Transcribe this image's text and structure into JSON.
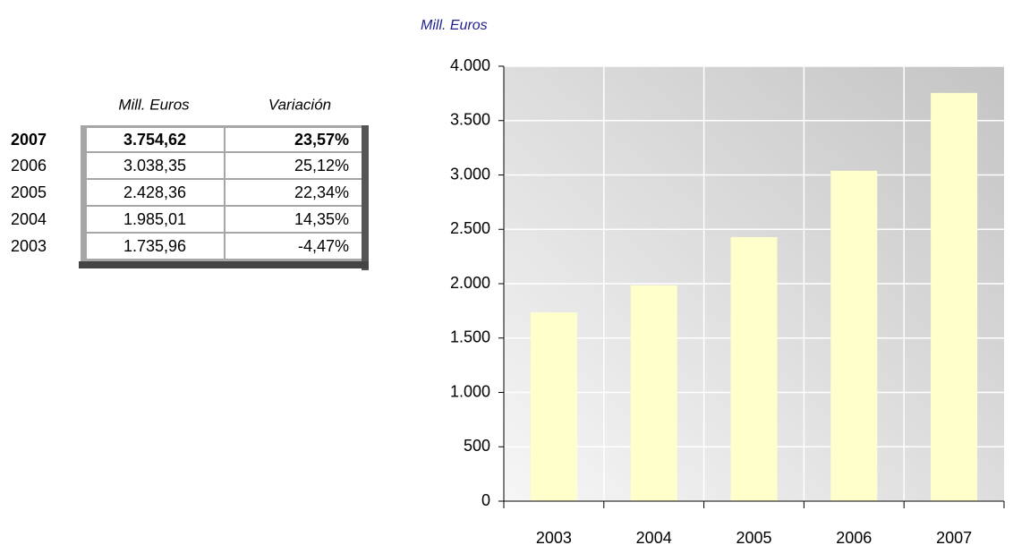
{
  "table": {
    "headers": [
      "Mill. Euros",
      "Variación"
    ],
    "rows": [
      [
        "2007",
        "3.754,62",
        "23,57%"
      ],
      [
        "2006",
        "3.038,35",
        "25,12%"
      ],
      [
        "2005",
        "2.428,36",
        "22,34%"
      ],
      [
        "2004",
        "1.985,01",
        "14,35%"
      ],
      [
        "2003",
        "1.735,96",
        "-4,47%"
      ]
    ]
  },
  "chart_data": {
    "type": "bar",
    "title": "Mill. Euros",
    "categories": [
      "2003",
      "2004",
      "2005",
      "2006",
      "2007"
    ],
    "values": [
      1735.96,
      1985.01,
      2428.36,
      3038.35,
      3754.62
    ],
    "color": "#ffffcc",
    "ylim": [
      0,
      4000
    ],
    "yticks": [
      0,
      500,
      {
        "value": 1000,
        "label": "1.000"
      },
      {
        "value": 1500,
        "label": "1.500"
      },
      {
        "value": 2000,
        "label": "2.000"
      },
      {
        "value": 2500,
        "label": "2.500"
      },
      {
        "value": 3000,
        "label": "3.000"
      },
      {
        "value": 3500,
        "label": "3.500"
      },
      {
        "value": 4000,
        "label": "4.000"
      }
    ],
    "grid": true
  }
}
